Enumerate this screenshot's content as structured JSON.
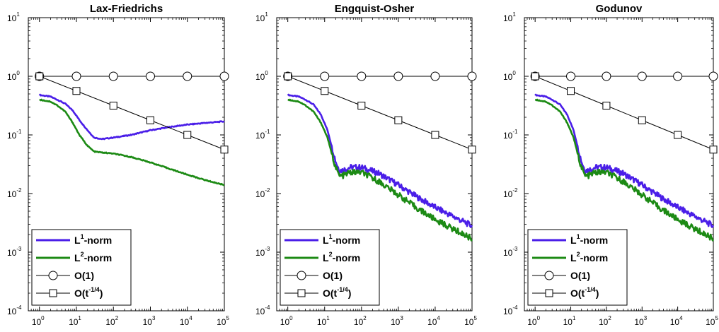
{
  "colors": {
    "l1": "#4a1ee8",
    "l2": "#1c8a14",
    "reference": "#000000"
  },
  "xticks": [
    {
      "base": "10",
      "exp": "0"
    },
    {
      "base": "10",
      "exp": "1"
    },
    {
      "base": "10",
      "exp": "2"
    },
    {
      "base": "10",
      "exp": "3"
    },
    {
      "base": "10",
      "exp": "4"
    },
    {
      "base": "10",
      "exp": "5"
    }
  ],
  "yticks": [
    {
      "base": "10",
      "exp": "-4"
    },
    {
      "base": "10",
      "exp": "-3"
    },
    {
      "base": "10",
      "exp": "-2"
    },
    {
      "base": "10",
      "exp": "-1"
    },
    {
      "base": "10",
      "exp": "0"
    },
    {
      "base": "10",
      "exp": "1"
    }
  ],
  "legend": [
    {
      "key": "l1",
      "prefix": "L",
      "sup": "1",
      "suffix": "-norm",
      "style": "line",
      "color": "#4a1ee8"
    },
    {
      "key": "l2",
      "prefix": "L",
      "sup": "2",
      "suffix": "-norm",
      "style": "line",
      "color": "#1c8a14"
    },
    {
      "key": "o1",
      "prefix": "O(1)",
      "sup": "",
      "suffix": "",
      "style": "circle",
      "color": "#000000"
    },
    {
      "key": "ot",
      "prefix": "O(t",
      "sup": "-1/4",
      "suffix": ")",
      "style": "square",
      "color": "#000000"
    }
  ],
  "chart_data": [
    {
      "type": "line",
      "title": "Lax-Friedrichs",
      "xscale": "log",
      "yscale": "log",
      "xlim": [
        0.5,
        100000
      ],
      "ylim": [
        0.0001,
        10
      ],
      "legend_position": "bottom-left",
      "series": [
        {
          "name": "L1-norm",
          "color": "#4a1ee8",
          "x": [
            1,
            2,
            3,
            5,
            8,
            12,
            20,
            30,
            50,
            100,
            300,
            1000,
            3000,
            10000,
            30000,
            100000
          ],
          "y": [
            0.48,
            0.45,
            0.4,
            0.34,
            0.26,
            0.18,
            0.12,
            0.09,
            0.085,
            0.09,
            0.1,
            0.12,
            0.135,
            0.15,
            0.16,
            0.17
          ]
        },
        {
          "name": "L2-norm",
          "color": "#1c8a14",
          "x": [
            1,
            2,
            3,
            5,
            8,
            12,
            20,
            30,
            50,
            100,
            300,
            1000,
            3000,
            10000,
            30000,
            100000
          ],
          "y": [
            0.4,
            0.37,
            0.32,
            0.25,
            0.16,
            0.1,
            0.065,
            0.052,
            0.05,
            0.048,
            0.042,
            0.034,
            0.027,
            0.021,
            0.017,
            0.014
          ]
        },
        {
          "name": "O(1)",
          "color": "#000000",
          "marker": "circle",
          "x": [
            1,
            10,
            100,
            1000,
            10000,
            100000
          ],
          "y": [
            1,
            1,
            1,
            1,
            1,
            1
          ]
        },
        {
          "name": "O(t^-1/4)",
          "color": "#000000",
          "marker": "square",
          "x": [
            1,
            10,
            100,
            1000,
            10000,
            100000
          ],
          "y": [
            1,
            0.5623,
            0.3162,
            0.1778,
            0.1,
            0.0562
          ]
        }
      ]
    },
    {
      "type": "line",
      "title": "Engquist-Osher",
      "xscale": "log",
      "yscale": "log",
      "xlim": [
        0.5,
        100000
      ],
      "ylim": [
        0.0001,
        10
      ],
      "legend_position": "bottom-left",
      "series": [
        {
          "name": "L1-norm",
          "color": "#4a1ee8",
          "x": [
            1,
            2,
            3,
            5,
            8,
            12,
            16,
            20,
            25,
            30,
            50,
            100,
            300,
            1000,
            3000,
            10000,
            30000,
            100000
          ],
          "y": [
            0.48,
            0.45,
            0.4,
            0.33,
            0.22,
            0.12,
            0.06,
            0.035,
            0.025,
            0.025,
            0.028,
            0.028,
            0.022,
            0.014,
            0.009,
            0.0058,
            0.0041,
            0.0028
          ]
        },
        {
          "name": "L2-norm",
          "color": "#1c8a14",
          "x": [
            1,
            2,
            3,
            5,
            8,
            12,
            16,
            20,
            25,
            30,
            50,
            100,
            300,
            1000,
            3000,
            10000,
            30000,
            100000
          ],
          "y": [
            0.4,
            0.37,
            0.32,
            0.25,
            0.16,
            0.09,
            0.045,
            0.028,
            0.02,
            0.02,
            0.023,
            0.023,
            0.016,
            0.0095,
            0.0058,
            0.0036,
            0.0025,
            0.0017
          ]
        },
        {
          "name": "O(1)",
          "color": "#000000",
          "marker": "circle",
          "x": [
            1,
            10,
            100,
            1000,
            10000,
            100000
          ],
          "y": [
            1,
            1,
            1,
            1,
            1,
            1
          ]
        },
        {
          "name": "O(t^-1/4)",
          "color": "#000000",
          "marker": "square",
          "x": [
            1,
            10,
            100,
            1000,
            10000,
            100000
          ],
          "y": [
            1,
            0.5623,
            0.3162,
            0.1778,
            0.1,
            0.0562
          ]
        }
      ]
    },
    {
      "type": "line",
      "title": "Godunov",
      "xscale": "log",
      "yscale": "log",
      "xlim": [
        0.5,
        100000
      ],
      "ylim": [
        0.0001,
        10
      ],
      "legend_position": "bottom-left",
      "series": [
        {
          "name": "L1-norm",
          "color": "#4a1ee8",
          "x": [
            1,
            2,
            3,
            5,
            8,
            12,
            16,
            20,
            25,
            30,
            50,
            100,
            300,
            1000,
            3000,
            10000,
            30000,
            100000
          ],
          "y": [
            0.48,
            0.45,
            0.4,
            0.33,
            0.22,
            0.12,
            0.06,
            0.035,
            0.025,
            0.025,
            0.028,
            0.028,
            0.022,
            0.014,
            0.009,
            0.0058,
            0.0041,
            0.0028
          ]
        },
        {
          "name": "L2-norm",
          "color": "#1c8a14",
          "x": [
            1,
            2,
            3,
            5,
            8,
            12,
            16,
            20,
            25,
            30,
            50,
            100,
            300,
            1000,
            3000,
            10000,
            30000,
            100000
          ],
          "y": [
            0.4,
            0.37,
            0.32,
            0.25,
            0.16,
            0.09,
            0.045,
            0.028,
            0.02,
            0.02,
            0.023,
            0.023,
            0.016,
            0.0095,
            0.0058,
            0.0036,
            0.0025,
            0.0017
          ]
        },
        {
          "name": "O(1)",
          "color": "#000000",
          "marker": "circle",
          "x": [
            1,
            10,
            100,
            1000,
            10000,
            100000
          ],
          "y": [
            1,
            1,
            1,
            1,
            1,
            1
          ]
        },
        {
          "name": "O(t^-1/4)",
          "color": "#000000",
          "marker": "square",
          "x": [
            1,
            10,
            100,
            1000,
            10000,
            100000
          ],
          "y": [
            1,
            0.5623,
            0.3162,
            0.1778,
            0.1,
            0.0562
          ]
        }
      ]
    }
  ]
}
